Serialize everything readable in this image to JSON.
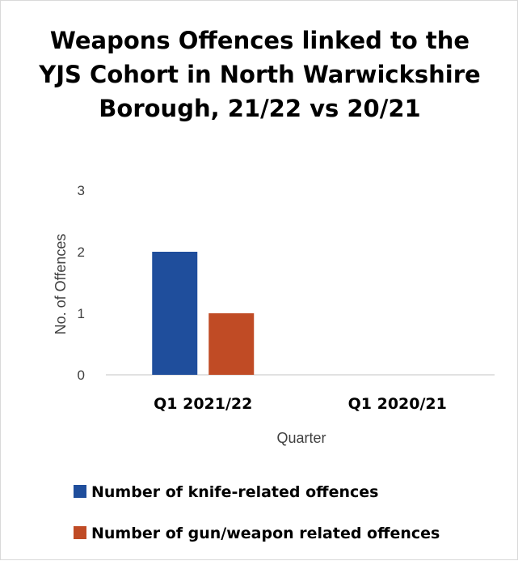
{
  "chart_data": {
    "type": "bar",
    "title": "Weapons Offences linked to the YJS Cohort in North Warwickshire Borough, 21/22 vs 20/21",
    "xlabel": "Quarter",
    "ylabel": "No. of Offences",
    "categories": [
      "Q1 2021/22",
      "Q1 2020/21"
    ],
    "series": [
      {
        "name": "Number of knife-related offences",
        "values": [
          2,
          0
        ],
        "color": "#1f4e9c"
      },
      {
        "name": "Number of gun/weapon related offences",
        "values": [
          1,
          0
        ],
        "color": "#c04b25"
      }
    ],
    "ylim": [
      0,
      3
    ],
    "yticks": [
      "0",
      "1",
      "2",
      "3"
    ],
    "grid": false,
    "legend": "bottom"
  }
}
